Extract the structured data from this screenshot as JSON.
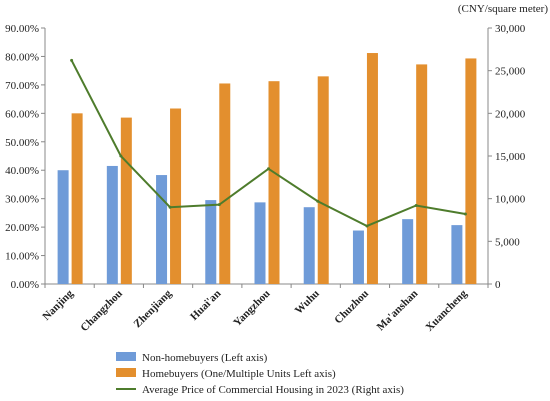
{
  "chart_data": {
    "type": "bar",
    "categories": [
      "Nanjing",
      "Changzhou",
      "Zhenjiang",
      "Huai'an",
      "Yangzhou",
      "Wuhu",
      "Chuzhou",
      "Ma'anshan",
      "Xuancheng"
    ],
    "series": [
      {
        "name": "Non-homebuyers (Left axis)",
        "type": "bar",
        "axis": "left",
        "color": "#6f9bd8",
        "values": [
          0.4,
          0.415,
          0.383,
          0.295,
          0.287,
          0.27,
          0.188,
          0.228,
          0.207
        ]
      },
      {
        "name": "Homebuyers (One/Multiple Units  Left axis)",
        "type": "bar",
        "axis": "left",
        "color": "#e38f2e",
        "values": [
          0.6,
          0.585,
          0.617,
          0.705,
          0.713,
          0.73,
          0.812,
          0.772,
          0.793
        ]
      },
      {
        "name": "Average Price of Commercial Housing in 2023 (Right axis)",
        "type": "line",
        "axis": "right",
        "color": "#4e7c2c",
        "values": [
          26200,
          15000,
          9000,
          9300,
          13500,
          9700,
          6800,
          9200,
          8200
        ]
      }
    ],
    "left_axis": {
      "ylim": [
        0,
        0.9
      ],
      "step": 0.1,
      "tick_labels": [
        "0.00%",
        "10.00%",
        "20.00%",
        "30.00%",
        "40.00%",
        "50.00%",
        "60.00%",
        "70.00%",
        "80.00%",
        "90.00%"
      ]
    },
    "right_axis": {
      "ylim": [
        0,
        30000
      ],
      "step": 5000,
      "unit_label": "(CNY/square meter)",
      "tick_labels": [
        "0",
        "5,000",
        "10,000",
        "15,000",
        "20,000",
        "25,000",
        "30,000"
      ]
    },
    "grid": false,
    "legend_position": "bottom"
  }
}
